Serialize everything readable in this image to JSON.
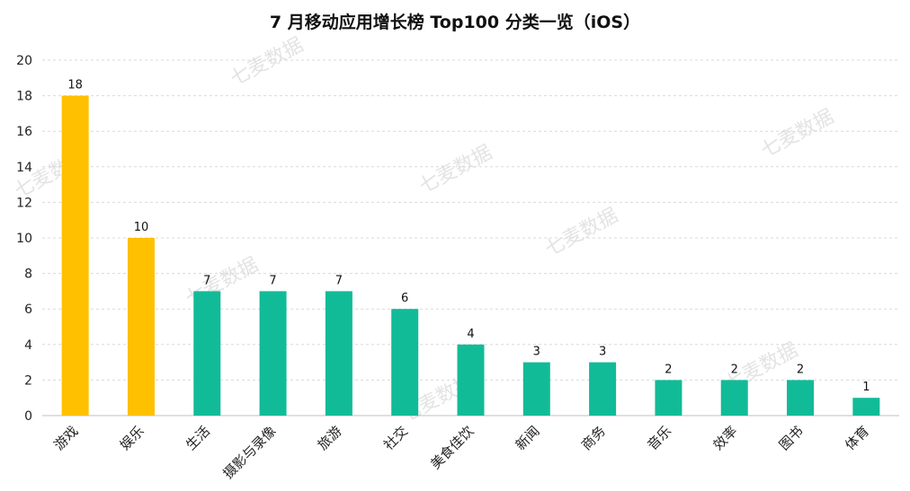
{
  "chart_data": {
    "type": "bar",
    "title": "7 月移动应用增长榜 Top100 分类一览（iOS）",
    "categories": [
      "游戏",
      "娱乐",
      "生活",
      "摄影与录像",
      "旅游",
      "社交",
      "美食佳饮",
      "新闻",
      "商务",
      "音乐",
      "效率",
      "图书",
      "体育"
    ],
    "values": [
      18,
      10,
      7,
      7,
      7,
      6,
      4,
      3,
      3,
      2,
      2,
      2,
      1
    ],
    "highlight_count": 2,
    "ylim": [
      0,
      20
    ],
    "yticks": [
      0,
      2,
      4,
      6,
      8,
      10,
      12,
      14,
      16,
      18,
      20
    ],
    "xlabel": "",
    "ylabel": "",
    "grid": true,
    "legend": "none",
    "colors": {
      "highlight": "#FFC000",
      "default": "#12BB97",
      "grid": "#d9d9d9"
    }
  },
  "watermark": {
    "text": "七麦数据"
  }
}
